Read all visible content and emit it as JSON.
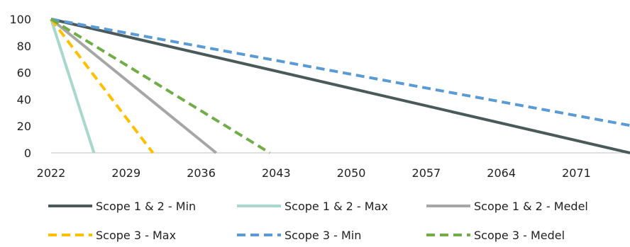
{
  "chart_data": {
    "type": "line",
    "title": "",
    "xlabel": "",
    "ylabel": "",
    "xlim": [
      2022,
      2076
    ],
    "ylim": [
      0,
      100
    ],
    "x_ticks": [
      "2022",
      "2029",
      "2036",
      "2043",
      "2050",
      "2057",
      "2064",
      "2071"
    ],
    "y_ticks": [
      "0",
      "20",
      "40",
      "60",
      "80",
      "100"
    ],
    "grid": false,
    "legend_position": "bottom",
    "series": [
      {
        "name": "Scope 1 & 2 - Min",
        "color": "#4a5a5a",
        "style": "solid",
        "points": [
          [
            2022,
            100
          ],
          [
            2076,
            0
          ]
        ]
      },
      {
        "name": "Scope 1 & 2 - Max",
        "color": "#a8d8cc",
        "style": "solid",
        "points": [
          [
            2022,
            100
          ],
          [
            2026,
            0
          ]
        ]
      },
      {
        "name": "Scope 1 & 2 - Medel",
        "color": "#a6a6a6",
        "style": "solid",
        "points": [
          [
            2022,
            100
          ],
          [
            2037.4,
            0
          ]
        ]
      },
      {
        "name": "Scope 3 - Max",
        "color": "#ffc000",
        "style": "dashed",
        "points": [
          [
            2022,
            100
          ],
          [
            2031.5,
            0
          ]
        ]
      },
      {
        "name": "Scope 3 - Min",
        "color": "#5b9bd5",
        "style": "dashed",
        "points": [
          [
            2022,
            100
          ],
          [
            2076,
            20.5
          ]
        ]
      },
      {
        "name": "Scope 3 - Medel",
        "color": "#70ad47",
        "style": "dashed",
        "points": [
          [
            2022,
            100
          ],
          [
            2042.4,
            0
          ]
        ]
      }
    ]
  }
}
